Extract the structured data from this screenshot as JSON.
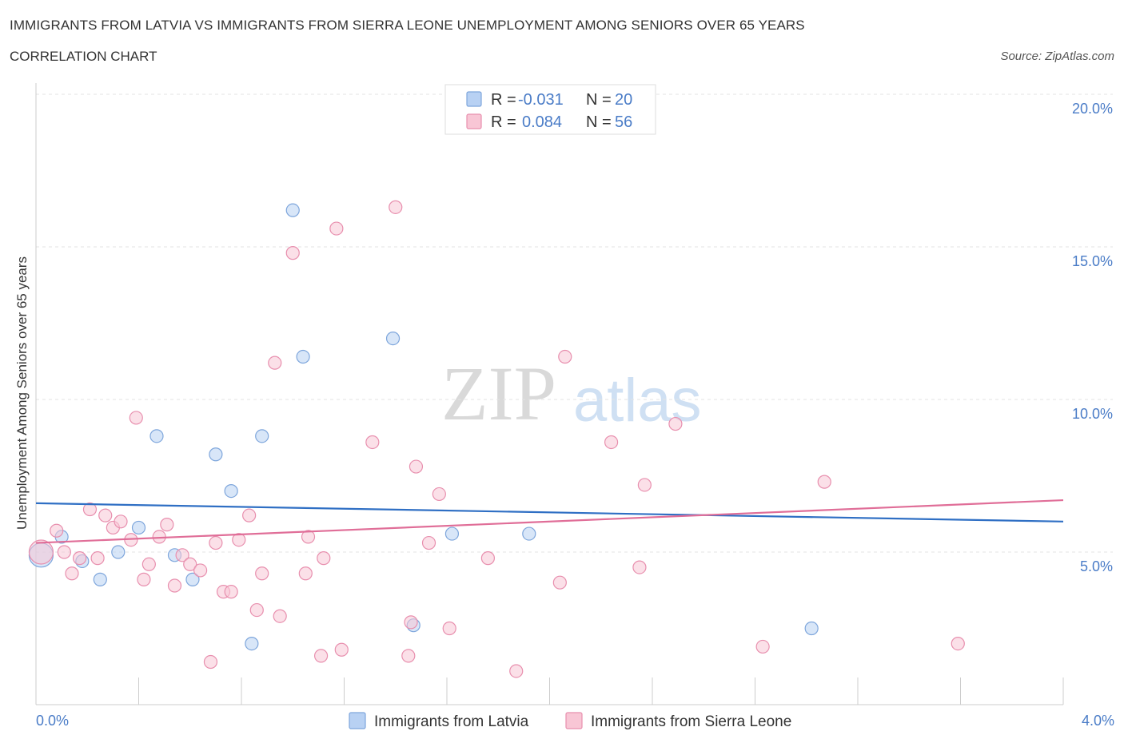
{
  "header": {
    "title": "IMMIGRANTS FROM LATVIA VS IMMIGRANTS FROM SIERRA LEONE UNEMPLOYMENT AMONG SENIORS OVER 65 YEARS",
    "subtitle": "CORRELATION CHART",
    "source": "Source: ZipAtlas.com"
  },
  "watermark": {
    "zip": "ZIP",
    "atlas": "atlas"
  },
  "colors": {
    "latvia_fill": "#b8d1f3",
    "latvia_stroke": "#7ea6dc",
    "latvia_line": "#2f6fc4",
    "sierra_fill": "#f8c6d5",
    "sierra_stroke": "#e88fae",
    "sierra_line": "#e06e98",
    "tick_text": "#4a7cc7"
  },
  "legend": {
    "r_label": "R =",
    "n_label": "N =",
    "rows": [
      {
        "series": "latvia",
        "r": "-0.031",
        "n": "20"
      },
      {
        "series": "sierra",
        "r": "0.084",
        "n": "56"
      }
    ]
  },
  "chart_data": {
    "type": "scatter",
    "xlabel": "",
    "ylabel": "Unemployment Among Seniors over 65 years",
    "xlim": [
      0,
      4
    ],
    "ylim": [
      0,
      20
    ],
    "x_tick_labels": {
      "min": "0.0%",
      "max": "4.0%"
    },
    "y_ticks": [
      {
        "value": 5,
        "label": "5.0%"
      },
      {
        "value": 10,
        "label": "10.0%"
      },
      {
        "value": 15,
        "label": "15.0%"
      },
      {
        "value": 20,
        "label": "20.0%"
      }
    ],
    "grid": true,
    "series": [
      {
        "name": "Immigrants from Latvia",
        "key": "latvia",
        "trend": {
          "x": [
            0,
            4
          ],
          "y": [
            6.6,
            6.0
          ]
        },
        "points": [
          {
            "x": 0.02,
            "y": 4.9,
            "big": true
          },
          {
            "x": 0.1,
            "y": 5.5
          },
          {
            "x": 0.18,
            "y": 4.7
          },
          {
            "x": 0.25,
            "y": 4.1
          },
          {
            "x": 0.32,
            "y": 5.0
          },
          {
            "x": 0.4,
            "y": 5.8
          },
          {
            "x": 0.47,
            "y": 8.8
          },
          {
            "x": 0.54,
            "y": 4.9
          },
          {
            "x": 0.61,
            "y": 4.1
          },
          {
            "x": 0.7,
            "y": 8.2
          },
          {
            "x": 0.76,
            "y": 7.0
          },
          {
            "x": 0.84,
            "y": 2.0
          },
          {
            "x": 0.88,
            "y": 8.8
          },
          {
            "x": 1.0,
            "y": 16.2
          },
          {
            "x": 1.04,
            "y": 11.4
          },
          {
            "x": 1.39,
            "y": 12.0
          },
          {
            "x": 1.47,
            "y": 2.6
          },
          {
            "x": 1.62,
            "y": 5.6
          },
          {
            "x": 1.92,
            "y": 5.6
          },
          {
            "x": 3.02,
            "y": 2.5
          }
        ]
      },
      {
        "name": "Immigrants from Sierra Leone",
        "key": "sierra",
        "trend": {
          "x": [
            0,
            4
          ],
          "y": [
            5.3,
            6.7
          ]
        },
        "points": [
          {
            "x": 0.02,
            "y": 5.0,
            "big": true
          },
          {
            "x": 0.08,
            "y": 5.7
          },
          {
            "x": 0.11,
            "y": 5.0
          },
          {
            "x": 0.14,
            "y": 4.3
          },
          {
            "x": 0.17,
            "y": 4.8
          },
          {
            "x": 0.21,
            "y": 6.4
          },
          {
            "x": 0.24,
            "y": 4.8
          },
          {
            "x": 0.27,
            "y": 6.2
          },
          {
            "x": 0.3,
            "y": 5.8
          },
          {
            "x": 0.33,
            "y": 6.0
          },
          {
            "x": 0.37,
            "y": 5.4
          },
          {
            "x": 0.39,
            "y": 9.4
          },
          {
            "x": 0.42,
            "y": 4.1
          },
          {
            "x": 0.44,
            "y": 4.6
          },
          {
            "x": 0.48,
            "y": 5.5
          },
          {
            "x": 0.51,
            "y": 5.9
          },
          {
            "x": 0.54,
            "y": 3.9
          },
          {
            "x": 0.57,
            "y": 4.9
          },
          {
            "x": 0.6,
            "y": 4.6
          },
          {
            "x": 0.64,
            "y": 4.4
          },
          {
            "x": 0.68,
            "y": 1.4
          },
          {
            "x": 0.7,
            "y": 5.3
          },
          {
            "x": 0.73,
            "y": 3.7
          },
          {
            "x": 0.76,
            "y": 3.7
          },
          {
            "x": 0.79,
            "y": 5.4
          },
          {
            "x": 0.83,
            "y": 6.2
          },
          {
            "x": 0.86,
            "y": 3.1
          },
          {
            "x": 0.88,
            "y": 4.3
          },
          {
            "x": 0.93,
            "y": 11.2
          },
          {
            "x": 0.95,
            "y": 2.9
          },
          {
            "x": 1.0,
            "y": 14.8
          },
          {
            "x": 1.05,
            "y": 4.3
          },
          {
            "x": 1.06,
            "y": 5.5
          },
          {
            "x": 1.11,
            "y": 1.6
          },
          {
            "x": 1.12,
            "y": 4.8
          },
          {
            "x": 1.17,
            "y": 15.6
          },
          {
            "x": 1.19,
            "y": 1.8
          },
          {
            "x": 1.31,
            "y": 8.6
          },
          {
            "x": 1.4,
            "y": 16.3
          },
          {
            "x": 1.45,
            "y": 1.6
          },
          {
            "x": 1.46,
            "y": 2.7
          },
          {
            "x": 1.53,
            "y": 5.3
          },
          {
            "x": 1.48,
            "y": 7.8
          },
          {
            "x": 1.57,
            "y": 6.9
          },
          {
            "x": 1.61,
            "y": 2.5
          },
          {
            "x": 1.76,
            "y": 4.8
          },
          {
            "x": 1.87,
            "y": 1.1
          },
          {
            "x": 2.04,
            "y": 4.0
          },
          {
            "x": 2.06,
            "y": 11.4
          },
          {
            "x": 2.24,
            "y": 8.6
          },
          {
            "x": 2.35,
            "y": 4.5
          },
          {
            "x": 2.37,
            "y": 7.2
          },
          {
            "x": 2.49,
            "y": 9.2
          },
          {
            "x": 2.83,
            "y": 1.9
          },
          {
            "x": 3.07,
            "y": 7.3
          },
          {
            "x": 3.59,
            "y": 2.0
          }
        ]
      }
    ]
  }
}
